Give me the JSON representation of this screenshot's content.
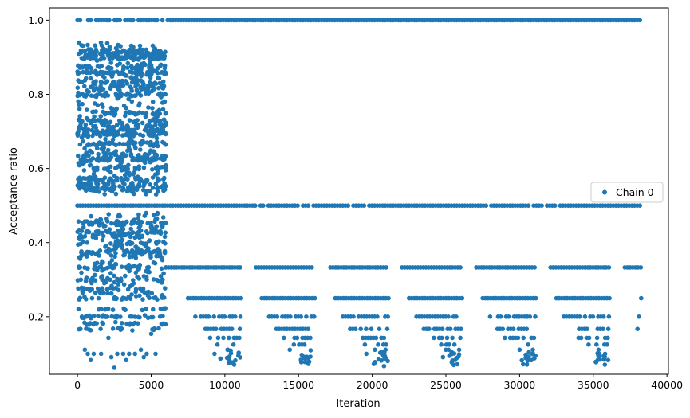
{
  "chart_data": {
    "type": "scatter",
    "title": "",
    "xlabel": "Iteration",
    "ylabel": "Acceptance ratio",
    "xlim": [
      -1900,
      40100
    ],
    "ylim": [
      0.045,
      1.033
    ],
    "xticks": [
      0,
      5000,
      10000,
      15000,
      20000,
      25000,
      30000,
      35000,
      40000
    ],
    "xtick_labels": [
      "0",
      "5000",
      "10000",
      "15000",
      "20000",
      "25000",
      "30000",
      "35000",
      "40000"
    ],
    "yticks": [
      0.2,
      0.4,
      0.6,
      0.8,
      1.0
    ],
    "ytick_labels": [
      "0.2",
      "0.4",
      "0.6",
      "0.8",
      "1.0"
    ],
    "grid": false,
    "legend": {
      "position": "center-right",
      "entries": [
        "Chain 0"
      ]
    },
    "series": [
      {
        "name": "Chain 0",
        "color": "#1f77b4",
        "marker": "circle",
        "point_groups": [
          {
            "x_range": [
              0,
              38300
            ],
            "y": 1.0,
            "density": "continuous"
          },
          {
            "x_range": [
              0,
              6000
            ],
            "y_range": [
              0.53,
              0.94
            ],
            "density": "dense-scatter"
          },
          {
            "x_range": [
              0,
              6000
            ],
            "y_range": [
              0.06,
              0.48
            ],
            "density": "scatter"
          },
          {
            "x_range": [
              0,
              38300
            ],
            "y": 0.5,
            "density": "continuous"
          },
          {
            "x_range": [
              6000,
              38300
            ],
            "y": 0.333,
            "density": "segmented"
          },
          {
            "x_range": [
              6000,
              38300
            ],
            "y_range": [
              0.07,
              0.25
            ],
            "density": "periodic-clusters"
          }
        ],
        "points": [
          [
            0,
            1.0
          ],
          [
            0,
            0.5
          ],
          [
            120,
            0.333
          ],
          [
            200,
            0.167
          ],
          [
            300,
            0.2
          ],
          [
            500,
            0.111
          ],
          [
            700,
            0.1
          ],
          [
            900,
            0.083
          ],
          [
            1100,
            0.1
          ],
          [
            1300,
            0.182
          ],
          [
            1600,
            0.1
          ],
          [
            1900,
            0.2
          ],
          [
            2100,
            0.143
          ],
          [
            2300,
            0.091
          ],
          [
            2500,
            0.0625
          ],
          [
            2700,
            0.1
          ],
          [
            2900,
            0.167
          ],
          [
            3100,
            0.1
          ],
          [
            3300,
            0.083
          ],
          [
            3500,
            0.1
          ],
          [
            3700,
            0.2
          ],
          [
            3900,
            0.1
          ],
          [
            4100,
            0.182
          ],
          [
            4300,
            0.111
          ],
          [
            4500,
            0.091
          ],
          [
            4700,
            0.1
          ],
          [
            5000,
            0.154
          ],
          [
            5300,
            0.1
          ],
          [
            5600,
            0.2
          ],
          [
            5800,
            0.222
          ],
          [
            9300,
            0.1
          ],
          [
            9700,
            0.087
          ],
          [
            10200,
            0.111
          ],
          [
            14400,
            0.111
          ],
          [
            15400,
            0.091
          ],
          [
            19600,
            0.1
          ],
          [
            20200,
            0.077
          ],
          [
            20800,
            0.067
          ],
          [
            24800,
            0.091
          ],
          [
            25400,
            0.077
          ],
          [
            30500,
            0.071
          ],
          [
            30800,
            0.083
          ],
          [
            35300,
            0.083
          ],
          [
            35800,
            0.1
          ],
          [
            38000,
            0.167
          ],
          [
            38100,
            0.2
          ],
          [
            38250,
            0.25
          ]
        ]
      }
    ]
  }
}
